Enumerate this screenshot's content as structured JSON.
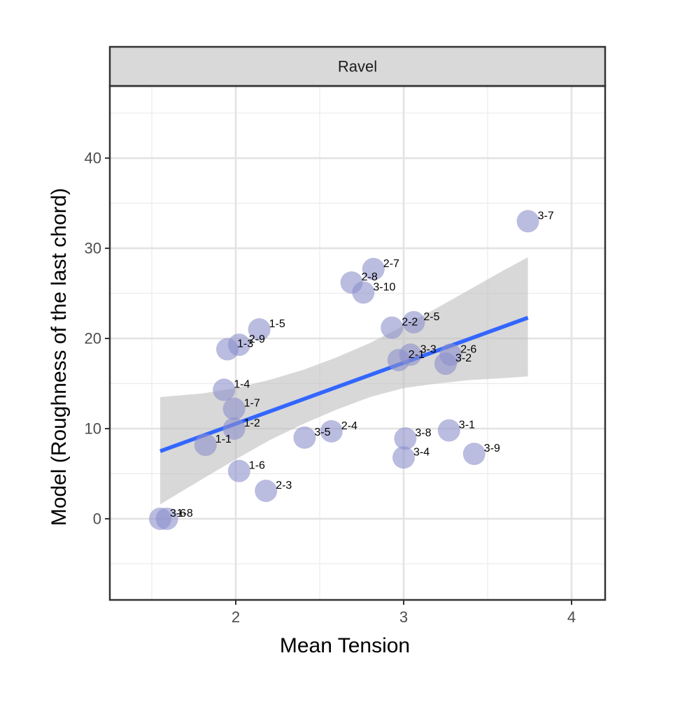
{
  "chart_data": {
    "type": "scatter",
    "facet": "Ravel",
    "xlabel": "Mean Tension",
    "ylabel": "Model (Roughness of the last chord)",
    "xlim": [
      1.25,
      4.2
    ],
    "ylim": [
      -9,
      48
    ],
    "xticks": [
      2,
      3,
      4
    ],
    "yticks": [
      0,
      10,
      20,
      30,
      40
    ],
    "grid": true,
    "point_color": "#8C8FCC",
    "line_color": "#3366FF",
    "band_color": "#BEBEBE",
    "points": [
      {
        "label": "3-7",
        "x": 3.74,
        "y": 33.0
      },
      {
        "label": "2-7",
        "x": 2.82,
        "y": 27.7
      },
      {
        "label": "2-8",
        "x": 2.69,
        "y": 26.2
      },
      {
        "label": "3-10",
        "x": 2.76,
        "y": 25.1
      },
      {
        "label": "2-5",
        "x": 3.06,
        "y": 21.8
      },
      {
        "label": "2-2",
        "x": 2.93,
        "y": 21.2
      },
      {
        "label": "1-5",
        "x": 2.14,
        "y": 21.0
      },
      {
        "label": "2-9",
        "x": 2.02,
        "y": 19.3
      },
      {
        "label": "1-3",
        "x": 1.95,
        "y": 18.8
      },
      {
        "label": "3-3",
        "x": 3.04,
        "y": 18.2
      },
      {
        "label": "2-6",
        "x": 3.28,
        "y": 18.2
      },
      {
        "label": "2-1",
        "x": 2.97,
        "y": 17.6
      },
      {
        "label": "3-2",
        "x": 3.25,
        "y": 17.2
      },
      {
        "label": "1-4",
        "x": 1.93,
        "y": 14.3
      },
      {
        "label": "1-7",
        "x": 1.99,
        "y": 12.2
      },
      {
        "label": "1-2",
        "x": 1.99,
        "y": 10.0
      },
      {
        "label": "3-1",
        "x": 3.27,
        "y": 9.8
      },
      {
        "label": "2-4",
        "x": 2.57,
        "y": 9.7
      },
      {
        "label": "3-5",
        "x": 2.41,
        "y": 9.0
      },
      {
        "label": "3-8",
        "x": 3.01,
        "y": 8.9
      },
      {
        "label": "1-1",
        "x": 1.82,
        "y": 8.2
      },
      {
        "label": "3-9",
        "x": 3.42,
        "y": 7.2
      },
      {
        "label": "3-4",
        "x": 3.0,
        "y": 6.8
      },
      {
        "label": "1-6",
        "x": 2.02,
        "y": 5.3
      },
      {
        "label": "2-3",
        "x": 2.18,
        "y": 3.1
      },
      {
        "label": "3-6",
        "x": 1.55,
        "y": 0.0
      },
      {
        "label": "1-8",
        "x": 1.59,
        "y": 0.0
      }
    ],
    "regression": {
      "x": [
        1.55,
        3.74
      ],
      "y": [
        7.5,
        22.3
      ]
    },
    "confidence_band": {
      "x": [
        1.55,
        1.8,
        2.0,
        2.2,
        2.4,
        2.6,
        2.8,
        3.0,
        3.2,
        3.4,
        3.6,
        3.74
      ],
      "upper": [
        13.5,
        13.9,
        14.5,
        15.4,
        16.5,
        17.9,
        19.5,
        21.4,
        23.4,
        25.5,
        27.6,
        29.0
      ],
      "lower": [
        1.6,
        4.4,
        6.6,
        8.7,
        10.5,
        12.1,
        13.5,
        14.5,
        15.0,
        15.4,
        15.6,
        15.8
      ]
    }
  }
}
